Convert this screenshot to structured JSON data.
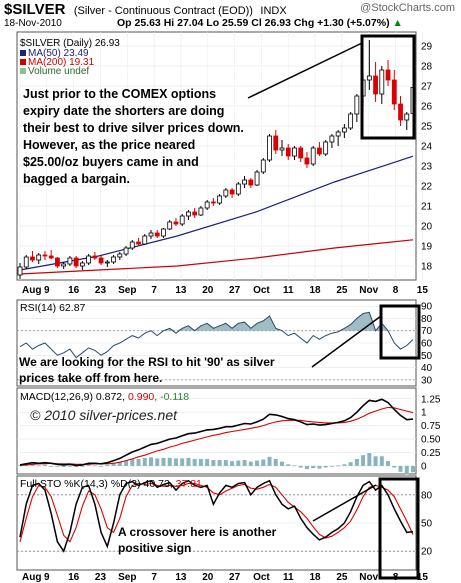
{
  "header": {
    "symbol": "$SILVER",
    "description": "(Silver - Continuous Contract (EOD))",
    "exchange": "INDX",
    "watermark": "@StockCharts.com",
    "date": "18-Nov-2010",
    "quote": "Op 25.63  Hi 27.04  Lo 25.59  Cl 26.93  Chg +1.30 (+5.07%)",
    "chg_arrow": "▲"
  },
  "price_legend": {
    "symbol": "$SILVER (Daily) 26.93",
    "ma50": "MA(50) 23.49",
    "ma200": "MA(200) 19.31",
    "volume": "Volume undef"
  },
  "annotations": {
    "price_note": [
      "Just prior to the COMEX options",
      "expiry date the shorters are doing",
      "their best to drive silver prices down.",
      "However, as the price neared",
      "$25.00/oz buyers came in and",
      "bagged a bargain."
    ],
    "rsi_note": [
      "We are looking for the RSI to hit '90' as silver",
      "prices take off from here."
    ],
    "copyright": "© 2010 silver-prices.net",
    "sto_note": [
      "A crossover here is another",
      "positive sign"
    ]
  },
  "colors": {
    "up": "#000000",
    "down": "#dd0000",
    "ma50": "#1a237e",
    "ma200": "#cc0000",
    "rsi_fill": "#8fb0bb",
    "macd_hist": "#89b4bf",
    "signal": "#dd0000",
    "panel_bg": "#ffffff"
  },
  "chart_data": [
    {
      "type": "candlestick",
      "title": "$SILVER (Daily) 26.93",
      "x_tick_labels": [
        "Aug",
        "9",
        "16",
        "23",
        "Sep",
        "7",
        "13",
        "20",
        "27",
        "Oct",
        "11",
        "18",
        "25",
        "Nov",
        "8",
        "15"
      ],
      "y_ticks": [
        18,
        19,
        20,
        21,
        22,
        23,
        24,
        25,
        26,
        27,
        28,
        29
      ],
      "ylim": [
        17.3,
        29.7
      ],
      "ohlc": [
        [
          17.55,
          18.15,
          17.35,
          17.95
        ],
        [
          17.95,
          18.55,
          17.85,
          18.45
        ],
        [
          18.45,
          18.75,
          18.2,
          18.3
        ],
        [
          18.3,
          18.65,
          18.1,
          18.55
        ],
        [
          18.55,
          18.75,
          18.3,
          18.5
        ],
        [
          18.5,
          18.8,
          18.35,
          18.4
        ],
        [
          18.4,
          18.45,
          17.9,
          18.0
        ],
        [
          18.0,
          18.2,
          17.85,
          18.1
        ],
        [
          18.1,
          18.5,
          18.0,
          18.4
        ],
        [
          18.4,
          18.5,
          17.9,
          18.0
        ],
        [
          18.0,
          18.25,
          17.8,
          18.15
        ],
        [
          18.15,
          18.6,
          18.05,
          18.5
        ],
        [
          18.5,
          18.7,
          18.3,
          18.4
        ],
        [
          18.4,
          18.5,
          18.05,
          18.15
        ],
        [
          18.15,
          18.3,
          17.95,
          18.2
        ],
        [
          18.2,
          18.55,
          18.1,
          18.45
        ],
        [
          18.45,
          18.7,
          18.3,
          18.6
        ],
        [
          18.6,
          19.0,
          18.5,
          18.9
        ],
        [
          18.9,
          19.3,
          18.8,
          19.2
        ],
        [
          19.2,
          19.4,
          19.0,
          19.1
        ],
        [
          19.1,
          19.6,
          19.05,
          19.5
        ],
        [
          19.5,
          19.8,
          19.35,
          19.65
        ],
        [
          19.65,
          19.8,
          19.4,
          19.5
        ],
        [
          19.5,
          19.9,
          19.4,
          19.85
        ],
        [
          19.85,
          20.3,
          19.8,
          20.2
        ],
        [
          20.2,
          20.4,
          20.0,
          20.1
        ],
        [
          20.1,
          20.6,
          20.0,
          20.5
        ],
        [
          20.5,
          20.8,
          20.3,
          20.7
        ],
        [
          20.7,
          20.9,
          20.4,
          20.55
        ],
        [
          20.55,
          21.0,
          20.5,
          20.9
        ],
        [
          20.9,
          21.3,
          20.8,
          21.2
        ],
        [
          21.2,
          21.4,
          21.0,
          21.15
        ],
        [
          21.15,
          21.6,
          21.05,
          21.5
        ],
        [
          21.5,
          21.9,
          21.4,
          21.8
        ],
        [
          21.8,
          21.9,
          21.4,
          21.6
        ],
        [
          21.6,
          22.2,
          21.5,
          22.1
        ],
        [
          22.1,
          22.5,
          21.9,
          22.3
        ],
        [
          22.3,
          22.4,
          21.9,
          22.05
        ],
        [
          22.05,
          22.8,
          22.0,
          22.7
        ],
        [
          22.7,
          23.4,
          22.6,
          23.3
        ],
        [
          23.3,
          24.6,
          23.2,
          24.5
        ],
        [
          24.5,
          24.8,
          23.6,
          23.8
        ],
        [
          23.8,
          24.3,
          23.5,
          23.9
        ],
        [
          23.9,
          24.1,
          23.3,
          23.5
        ],
        [
          23.5,
          24.0,
          23.3,
          23.9
        ],
        [
          23.9,
          24.0,
          23.2,
          23.4
        ],
        [
          23.4,
          23.7,
          22.9,
          23.1
        ],
        [
          23.1,
          24.0,
          23.0,
          23.9
        ],
        [
          23.9,
          24.2,
          23.5,
          23.6
        ],
        [
          23.6,
          24.3,
          23.5,
          24.2
        ],
        [
          24.2,
          24.6,
          23.9,
          24.5
        ],
        [
          24.5,
          24.8,
          24.0,
          24.7
        ],
        [
          24.7,
          25.1,
          24.4,
          24.9
        ],
        [
          24.9,
          25.7,
          24.8,
          25.6
        ],
        [
          25.6,
          26.6,
          25.2,
          26.5
        ],
        [
          26.5,
          27.6,
          26.0,
          27.3
        ],
        [
          27.3,
          29.3,
          26.8,
          27.5
        ],
        [
          27.5,
          28.2,
          26.2,
          26.6
        ],
        [
          26.6,
          28.0,
          26.1,
          27.8
        ],
        [
          27.8,
          28.3,
          27.0,
          27.3
        ],
        [
          27.3,
          27.8,
          25.8,
          26.1
        ],
        [
          26.1,
          26.5,
          25.0,
          25.3
        ],
        [
          25.3,
          25.7,
          24.8,
          25.6
        ],
        [
          25.63,
          27.04,
          25.59,
          26.93
        ]
      ],
      "ma50": [
        17.8,
        18.5,
        19.5,
        20.7,
        22.2,
        23.49
      ],
      "ma200": [
        17.6,
        17.8,
        18.0,
        18.4,
        18.9,
        19.31
      ],
      "legend": [
        "$SILVER (Daily) 26.93",
        "MA(50) 23.49",
        "MA(200) 19.31",
        "Volume undef"
      ]
    },
    {
      "type": "area",
      "title": "RSI(14) 62.87",
      "y_ticks": [
        30,
        40,
        50,
        60,
        70,
        80,
        90
      ],
      "ylim": [
        25,
        95
      ],
      "values": [
        57,
        60,
        55,
        58,
        60,
        55,
        50,
        52,
        55,
        48,
        52,
        56,
        54,
        50,
        53,
        58,
        60,
        63,
        66,
        64,
        68,
        70,
        66,
        70,
        72,
        68,
        72,
        74,
        70,
        74,
        76,
        72,
        74,
        76,
        72,
        76,
        77,
        72,
        76,
        78,
        82,
        72,
        70,
        66,
        68,
        64,
        60,
        66,
        63,
        66,
        68,
        69,
        72,
        75,
        80,
        84,
        85,
        70,
        76,
        70,
        60,
        55,
        58,
        62.87
      ]
    },
    {
      "type": "line",
      "title": "MACD(12,26,9) 0.872, 0.990, -0.118",
      "y_ticks": [
        0.0,
        0.25,
        0.5,
        0.75,
        1.0,
        1.25
      ],
      "ylim": [
        -0.15,
        1.45
      ],
      "series": [
        {
          "name": "MACD",
          "values": [
            0.02,
            0.04,
            0.06,
            0.05,
            0.06,
            0.05,
            0.03,
            0.02,
            0.03,
            0.01,
            0.02,
            0.05,
            0.05,
            0.04,
            0.06,
            0.1,
            0.14,
            0.2,
            0.26,
            0.3,
            0.35,
            0.4,
            0.42,
            0.46,
            0.5,
            0.52,
            0.56,
            0.6,
            0.61,
            0.64,
            0.67,
            0.68,
            0.7,
            0.73,
            0.73,
            0.76,
            0.79,
            0.78,
            0.82,
            0.87,
            0.96,
            0.95,
            0.92,
            0.88,
            0.86,
            0.82,
            0.77,
            0.78,
            0.76,
            0.77,
            0.79,
            0.81,
            0.84,
            0.9,
            1.0,
            1.12,
            1.22,
            1.2,
            1.24,
            1.18,
            1.05,
            0.94,
            0.86,
            0.872
          ]
        },
        {
          "name": "Signal",
          "values": [
            0.01,
            0.02,
            0.03,
            0.04,
            0.04,
            0.05,
            0.04,
            0.04,
            0.04,
            0.03,
            0.03,
            0.03,
            0.04,
            0.04,
            0.04,
            0.05,
            0.07,
            0.1,
            0.13,
            0.17,
            0.2,
            0.24,
            0.28,
            0.31,
            0.35,
            0.38,
            0.42,
            0.45,
            0.48,
            0.51,
            0.54,
            0.57,
            0.59,
            0.62,
            0.64,
            0.66,
            0.68,
            0.7,
            0.72,
            0.75,
            0.79,
            0.82,
            0.84,
            0.85,
            0.85,
            0.85,
            0.83,
            0.82,
            0.81,
            0.8,
            0.8,
            0.8,
            0.81,
            0.83,
            0.87,
            0.92,
            0.98,
            1.02,
            1.06,
            1.09,
            1.08,
            1.05,
            1.02,
            0.99
          ]
        },
        {
          "name": "Histogram",
          "values": [
            0.01,
            0.02,
            0.03,
            0.01,
            0.02,
            0.0,
            -0.01,
            -0.02,
            -0.01,
            -0.02,
            -0.01,
            0.02,
            0.01,
            0.0,
            0.02,
            0.05,
            0.07,
            0.1,
            0.13,
            0.13,
            0.15,
            0.16,
            0.14,
            0.15,
            0.15,
            0.14,
            0.14,
            0.15,
            0.13,
            0.13,
            0.13,
            0.11,
            0.11,
            0.11,
            0.09,
            0.1,
            0.11,
            0.08,
            0.1,
            0.12,
            0.17,
            0.13,
            0.08,
            0.03,
            0.01,
            -0.03,
            -0.06,
            -0.04,
            -0.05,
            -0.03,
            -0.01,
            0.01,
            0.03,
            0.07,
            0.13,
            0.2,
            0.24,
            0.18,
            0.18,
            0.09,
            -0.03,
            -0.11,
            -0.16,
            -0.118
          ]
        }
      ]
    },
    {
      "type": "line",
      "title": "Full STO %K(14,3) %D(3) 40.73, 37.81",
      "y_ticks": [
        20,
        50,
        80
      ],
      "ylim": [
        0,
        100
      ],
      "series": [
        {
          "name": "%K",
          "values": [
            35,
            70,
            90,
            92,
            85,
            60,
            30,
            20,
            40,
            70,
            88,
            90,
            70,
            40,
            25,
            50,
            80,
            92,
            94,
            90,
            93,
            95,
            88,
            91,
            93,
            85,
            92,
            95,
            90,
            88,
            90,
            70,
            82,
            90,
            88,
            92,
            93,
            80,
            88,
            92,
            95,
            80,
            70,
            65,
            68,
            55,
            45,
            38,
            32,
            35,
            40,
            44,
            50,
            62,
            78,
            90,
            94,
            85,
            90,
            80,
            65,
            52,
            40,
            40.73
          ]
        },
        {
          "name": "%D",
          "values": [
            30,
            55,
            78,
            90,
            88,
            78,
            58,
            37,
            30,
            45,
            68,
            84,
            80,
            65,
            45,
            40,
            55,
            78,
            90,
            92,
            91,
            92,
            90,
            89,
            90,
            89,
            90,
            92,
            92,
            90,
            88,
            82,
            80,
            84,
            87,
            90,
            91,
            87,
            86,
            88,
            91,
            88,
            80,
            72,
            67,
            62,
            55,
            46,
            38,
            34,
            36,
            40,
            45,
            52,
            64,
            78,
            88,
            90,
            88,
            85,
            78,
            65,
            52,
            37.81
          ]
        }
      ]
    }
  ]
}
